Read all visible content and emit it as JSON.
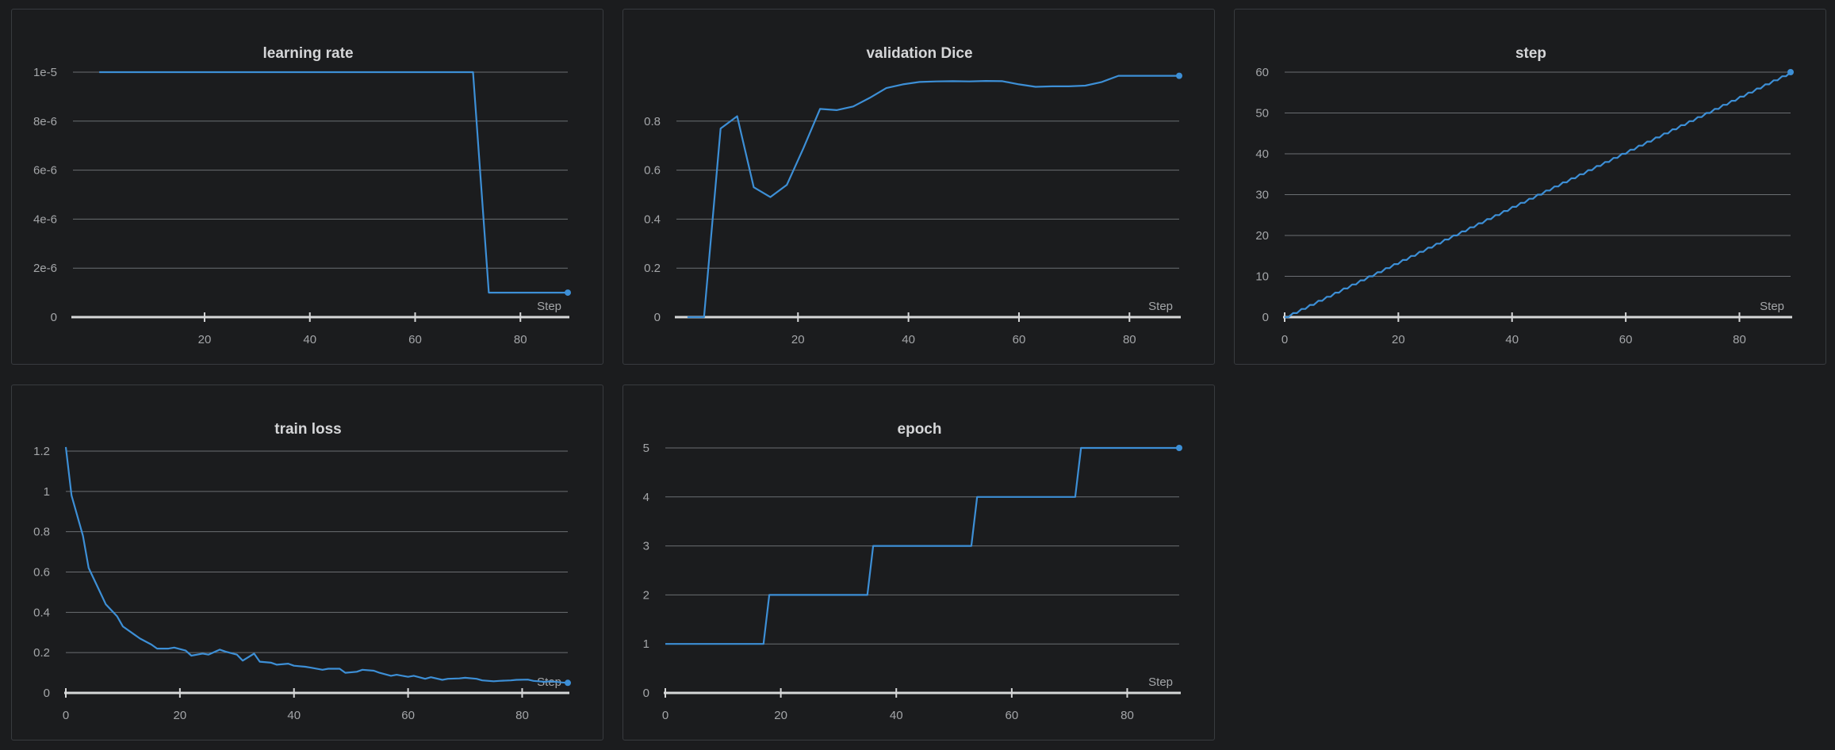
{
  "colors": {
    "series": "#3d8fd6",
    "background": "#1b1c1e",
    "border": "#383b3f",
    "grid": "#6b6e72",
    "axis": "#d6d7d8",
    "text": "#a4a6a9",
    "title": "#d5d6d8"
  },
  "chart_data": [
    {
      "id": "learning-rate",
      "type": "line",
      "title": "learning rate",
      "xlabel": "Step",
      "ylabel": "",
      "xlim": [
        -5,
        89
      ],
      "ylim": [
        0,
        1e-05
      ],
      "x_ticks": [
        20,
        40,
        60,
        80
      ],
      "x_tick_labels": [
        "20",
        "40",
        "60",
        "80"
      ],
      "y_ticks": [
        0,
        2e-06,
        4e-06,
        6e-06,
        8e-06,
        1e-05
      ],
      "y_tick_labels": [
        "0",
        "2e-6",
        "4e-6",
        "6e-6",
        "8e-6",
        "1e-5"
      ],
      "series": [
        {
          "name": "learning rate",
          "x": [
            0,
            71,
            74,
            89
          ],
          "y": [
            1e-05,
            1e-05,
            1e-06,
            1e-06
          ]
        }
      ]
    },
    {
      "id": "validation-dice",
      "type": "line",
      "title": "validation Dice",
      "xlabel": "Step",
      "ylabel": "",
      "xlim": [
        -2,
        89
      ],
      "ylim": [
        0,
        1.0
      ],
      "x_ticks": [
        20,
        40,
        60,
        80
      ],
      "x_tick_labels": [
        "20",
        "40",
        "60",
        "80"
      ],
      "y_ticks": [
        0,
        0.2,
        0.4,
        0.6,
        0.8
      ],
      "y_tick_labels": [
        "0",
        "0.2",
        "0.4",
        "0.6",
        "0.8"
      ],
      "series": [
        {
          "name": "validation Dice",
          "x": [
            0,
            3,
            6,
            9,
            12,
            15,
            18,
            21,
            24,
            27,
            30,
            33,
            36,
            39,
            42,
            45,
            48,
            51,
            54,
            57,
            60,
            63,
            66,
            69,
            72,
            75,
            78,
            81,
            84,
            87,
            89
          ],
          "y": [
            0,
            0,
            0.77,
            0.82,
            0.53,
            0.49,
            0.54,
            0.69,
            0.85,
            0.845,
            0.86,
            0.895,
            0.935,
            0.95,
            0.96,
            0.962,
            0.963,
            0.962,
            0.964,
            0.963,
            0.95,
            0.94,
            0.942,
            0.942,
            0.945,
            0.96,
            0.985,
            0.985,
            0.985,
            0.985,
            0.985
          ]
        }
      ]
    },
    {
      "id": "step",
      "type": "line",
      "title": "step",
      "xlabel": "Step",
      "ylabel": "",
      "xlim": [
        0,
        89
      ],
      "ylim": [
        0,
        60
      ],
      "x_ticks": [
        0,
        20,
        40,
        60,
        80
      ],
      "x_tick_labels": [
        "0",
        "20",
        "40",
        "60",
        "80"
      ],
      "y_ticks": [
        0,
        10,
        20,
        30,
        40,
        50,
        60
      ],
      "y_tick_labels": [
        "0",
        "10",
        "20",
        "30",
        "40",
        "50",
        "60"
      ],
      "series": [
        {
          "name": "step",
          "x": [
            0,
            89
          ],
          "y": [
            0,
            60
          ]
        }
      ]
    },
    {
      "id": "train-loss",
      "type": "line",
      "title": "train loss",
      "xlabel": "Step",
      "ylabel": "",
      "xlim": [
        0,
        88
      ],
      "ylim": [
        0,
        1.2
      ],
      "x_ticks": [
        0,
        20,
        40,
        60,
        80
      ],
      "x_tick_labels": [
        "0",
        "20",
        "40",
        "60",
        "80"
      ],
      "y_ticks": [
        0,
        0.2,
        0.4,
        0.6,
        0.8,
        1,
        1.2
      ],
      "y_tick_labels": [
        "0",
        "0.2",
        "0.4",
        "0.6",
        "0.8",
        "1",
        "1.2"
      ],
      "series": [
        {
          "name": "train loss",
          "x": [
            0,
            1,
            3,
            4,
            6,
            7,
            9,
            10,
            12,
            13,
            15,
            16,
            18,
            19,
            21,
            22,
            24,
            25,
            27,
            28,
            30,
            31,
            33,
            34,
            36,
            37,
            39,
            40,
            42,
            43,
            45,
            46,
            48,
            49,
            51,
            52,
            54,
            55,
            57,
            58,
            60,
            61,
            63,
            64,
            66,
            67,
            69,
            70,
            72,
            73,
            75,
            76,
            78,
            79,
            81,
            82,
            84,
            85,
            87,
            88
          ],
          "y": [
            1.22,
            0.98,
            0.78,
            0.62,
            0.5,
            0.44,
            0.38,
            0.33,
            0.29,
            0.27,
            0.24,
            0.22,
            0.22,
            0.225,
            0.21,
            0.185,
            0.195,
            0.19,
            0.215,
            0.205,
            0.19,
            0.16,
            0.195,
            0.155,
            0.15,
            0.14,
            0.145,
            0.135,
            0.13,
            0.125,
            0.115,
            0.12,
            0.12,
            0.1,
            0.105,
            0.115,
            0.11,
            0.1,
            0.085,
            0.09,
            0.08,
            0.085,
            0.07,
            0.078,
            0.065,
            0.07,
            0.072,
            0.075,
            0.07,
            0.062,
            0.058,
            0.06,
            0.062,
            0.065,
            0.066,
            0.06,
            0.055,
            0.058,
            0.052,
            0.05
          ]
        }
      ]
    },
    {
      "id": "epoch",
      "type": "line",
      "title": "epoch",
      "xlabel": "Step",
      "ylabel": "",
      "xlim": [
        0,
        89
      ],
      "ylim": [
        0,
        5
      ],
      "x_ticks": [
        0,
        20,
        40,
        60,
        80
      ],
      "x_tick_labels": [
        "0",
        "20",
        "40",
        "60",
        "80"
      ],
      "y_ticks": [
        0,
        1,
        2,
        3,
        4,
        5
      ],
      "y_tick_labels": [
        "0",
        "1",
        "2",
        "3",
        "4",
        "5"
      ],
      "series": [
        {
          "name": "epoch",
          "x": [
            0,
            17,
            18,
            35,
            36,
            53,
            54,
            71,
            72,
            89
          ],
          "y": [
            1,
            1,
            2,
            2,
            3,
            3,
            4,
            4,
            5,
            5
          ]
        }
      ]
    }
  ]
}
